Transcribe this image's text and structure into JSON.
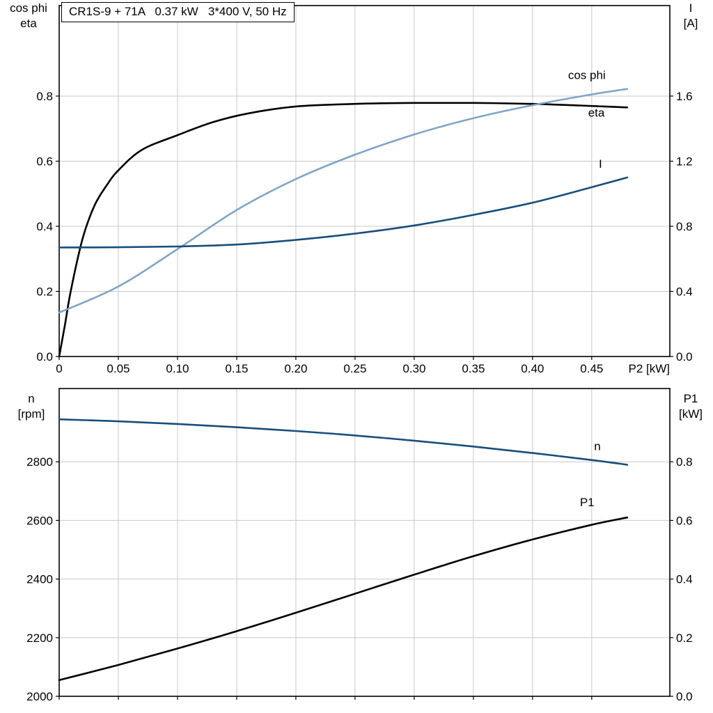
{
  "title_box": {
    "text": "CR1S-9 + 71A   0.37 kW   3*400 V, 50 Hz"
  },
  "colors": {
    "black": "#000000",
    "light_blue": "#7fa5c7",
    "dark_blue": "#164e7a",
    "grid": "#c8c8c8",
    "frame": "#000000"
  },
  "chart_data": [
    {
      "id": "top",
      "type": "line",
      "title": "CR1S-9 + 71A   0.37 kW   3*400 V, 50 Hz",
      "xlabel": "P2 [kW]",
      "grid": true,
      "x_axis": {
        "min": 0,
        "max": 0.516,
        "ticks": [
          0,
          0.05,
          0.1,
          0.15,
          0.2,
          0.25,
          0.3,
          0.35,
          0.4,
          0.45
        ],
        "tick_labels": [
          "0",
          "0.05",
          "0.10",
          "0.15",
          "0.20",
          "0.25",
          "0.30",
          "0.35",
          "0.40",
          "0.45"
        ],
        "show_tick_labels": true
      },
      "left_axis": {
        "title_lines": [
          "cos phi",
          "eta"
        ],
        "min": 0,
        "max": 1.078,
        "ticks": [
          0,
          0.2,
          0.4,
          0.6,
          0.8
        ],
        "tick_labels": [
          "0.0",
          "0.2",
          "0.4",
          "0.6",
          "0.8"
        ]
      },
      "right_axis": {
        "title_lines": [
          "I",
          "[A]"
        ],
        "min": 0,
        "max": 2.156,
        "ticks": [
          0,
          0.4,
          0.8,
          1.2,
          1.6
        ],
        "tick_labels": [
          "0.0",
          "0.4",
          "0.8",
          "1.2",
          "1.6"
        ]
      },
      "series": [
        {
          "name": "eta",
          "axis": "left",
          "color_key": "black",
          "width": 2.6,
          "x": [
            0,
            0.005,
            0.01,
            0.02,
            0.03,
            0.04,
            0.05,
            0.07,
            0.1,
            0.13,
            0.16,
            0.2,
            0.25,
            0.3,
            0.35,
            0.4,
            0.44,
            0.48
          ],
          "y": [
            0,
            0.1,
            0.205,
            0.365,
            0.465,
            0.525,
            0.572,
            0.635,
            0.68,
            0.72,
            0.747,
            0.768,
            0.776,
            0.779,
            0.779,
            0.776,
            0.771,
            0.765
          ],
          "label": {
            "text": "eta",
            "x": 0.447,
            "y": 0.737
          }
        },
        {
          "name": "cos phi",
          "axis": "left",
          "color_key": "light_blue",
          "width": 2.6,
          "x": [
            0,
            0.05,
            0.1,
            0.15,
            0.2,
            0.25,
            0.3,
            0.35,
            0.4,
            0.45,
            0.48
          ],
          "y": [
            0.135,
            0.215,
            0.33,
            0.45,
            0.545,
            0.62,
            0.682,
            0.732,
            0.772,
            0.805,
            0.822
          ],
          "label": {
            "text": "cos phi",
            "x": 0.43,
            "y": 0.852
          }
        },
        {
          "name": "I",
          "axis": "right",
          "color_key": "dark_blue",
          "width": 2.6,
          "x": [
            0,
            0.05,
            0.1,
            0.15,
            0.2,
            0.25,
            0.3,
            0.35,
            0.4,
            0.45,
            0.48
          ],
          "y": [
            0.67,
            0.671,
            0.676,
            0.688,
            0.716,
            0.755,
            0.805,
            0.87,
            0.945,
            1.04,
            1.1
          ],
          "label": {
            "text": "I",
            "x": 0.456,
            "y": 1.16
          }
        }
      ]
    },
    {
      "id": "bottom",
      "type": "line",
      "title": "",
      "xlabel": "",
      "grid": true,
      "x_axis": {
        "min": 0,
        "max": 0.516,
        "ticks": [
          0,
          0.05,
          0.1,
          0.15,
          0.2,
          0.25,
          0.3,
          0.35,
          0.4,
          0.45
        ],
        "tick_labels": [
          "",
          "",
          "",
          "",
          "",
          "",
          "",
          "",
          "",
          ""
        ],
        "show_tick_labels": false
      },
      "left_axis": {
        "title_lines": [
          "n",
          "[rpm]"
        ],
        "min": 2000,
        "max": 3050,
        "ticks": [
          2000,
          2200,
          2400,
          2600,
          2800
        ],
        "tick_labels": [
          "2000",
          "2200",
          "2400",
          "2600",
          "2800"
        ]
      },
      "right_axis": {
        "title_lines": [
          "P1",
          "[kW]"
        ],
        "min": 0,
        "max": 1.05,
        "ticks": [
          0,
          0.2,
          0.4,
          0.6,
          0.8
        ],
        "tick_labels": [
          "0.0",
          "0.2",
          "0.4",
          "0.6",
          "0.8"
        ]
      },
      "series": [
        {
          "name": "n",
          "axis": "left",
          "color_key": "dark_blue",
          "width": 2.6,
          "x": [
            0,
            0.05,
            0.1,
            0.15,
            0.2,
            0.25,
            0.3,
            0.35,
            0.4,
            0.45,
            0.48
          ],
          "y": [
            2945,
            2938,
            2929,
            2918,
            2905,
            2890,
            2872,
            2852,
            2830,
            2806,
            2790
          ],
          "label": {
            "text": "n",
            "x": 0.452,
            "y": 2840
          }
        },
        {
          "name": "P1",
          "axis": "right",
          "color_key": "black",
          "width": 2.6,
          "x": [
            0,
            0.05,
            0.1,
            0.15,
            0.2,
            0.25,
            0.3,
            0.35,
            0.4,
            0.45,
            0.48
          ],
          "y": [
            0.055,
            0.107,
            0.163,
            0.222,
            0.285,
            0.35,
            0.415,
            0.478,
            0.535,
            0.585,
            0.61
          ],
          "label": {
            "text": "P1",
            "x": 0.44,
            "y": 0.648
          }
        }
      ]
    }
  ]
}
